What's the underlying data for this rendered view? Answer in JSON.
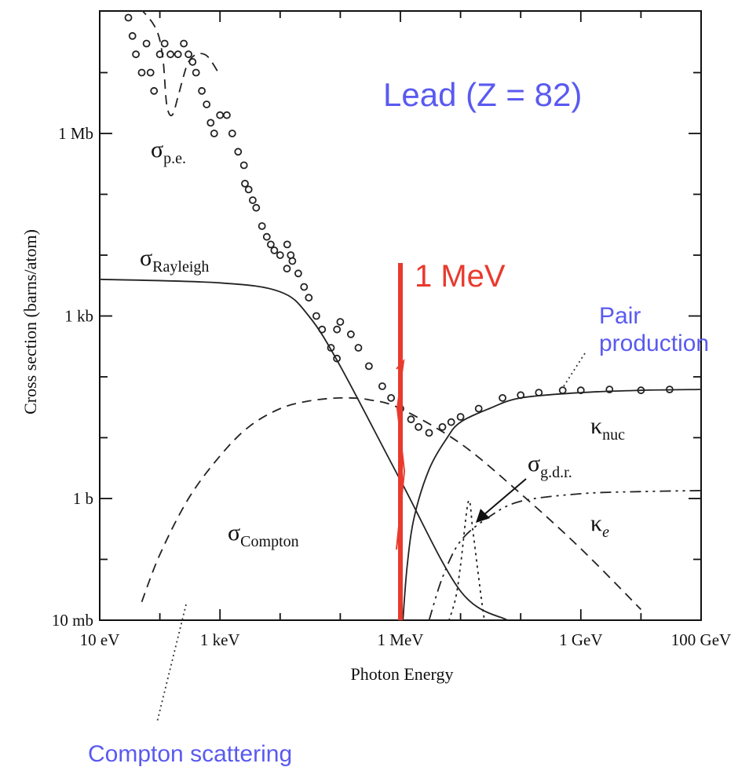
{
  "chart_data": {
    "type": "line",
    "xlabel": "Photon Energy",
    "ylabel": "Cross section  (barns/atom)",
    "x_scale": "log",
    "y_scale": "log",
    "xlim": [
      "10 eV",
      "100 GeV"
    ],
    "ylim": [
      "10 mb",
      "3000 Mb"
    ],
    "x_ticks": [
      "10 eV",
      "1 keV",
      "1 MeV",
      "1 GeV",
      "100 GeV"
    ],
    "y_ticks": [
      "10 mb",
      "1 b",
      "1 kb",
      "1 Mb"
    ],
    "annotations": {
      "element": "Lead (Z = 82)",
      "energy_marker": "1 MeV",
      "pair_production": [
        "Pair",
        "production"
      ],
      "compton_scattering": "Compton scattering"
    },
    "series": [
      {
        "name": "σ_p.e.",
        "label_main": "σ",
        "label_sub": "p.e.",
        "style": "dashed",
        "x_eV": [
          10,
          30,
          80,
          110,
          130,
          160,
          200,
          250,
          300,
          400,
          550,
          700,
          1000
        ],
        "y_barns": [
          1500000000,
          200000000,
          60000000,
          20000000,
          3000000,
          2000000,
          4000000,
          9000000,
          15000000,
          20000000,
          20000000,
          16000000,
          9000000
        ]
      },
      {
        "name": "σ_Rayleigh",
        "label_main": "σ",
        "label_sub": "Rayleigh",
        "style": "solid",
        "x_eV": [
          10,
          1000,
          10000,
          30000,
          100000,
          1000000,
          10000000,
          60000000
        ],
        "y_barns": [
          4000,
          3500,
          2500,
          1000,
          150,
          2,
          0.03,
          0.01
        ]
      },
      {
        "name": "σ_Compton",
        "label_main": "σ",
        "label_sub": "Compton",
        "style": "dashed",
        "x_eV": [
          50,
          100,
          300,
          1000,
          3000,
          10000,
          30000,
          100000,
          300000,
          1000000,
          10000000,
          100000000,
          1000000000,
          10000000000
        ],
        "y_barns": [
          0.02,
          0.12,
          1,
          5,
          15,
          30,
          40,
          45,
          42,
          30,
          8,
          1.2,
          0.15,
          0.015
        ]
      },
      {
        "name": "κ_nuc",
        "label_main": "κ",
        "label_sub": "nuc",
        "style": "solid",
        "x_eV": [
          1100000,
          1300000,
          1700000,
          3000000,
          6000000,
          10000000,
          30000000,
          100000000,
          1000000000,
          10000000000,
          100000000000
        ],
        "y_barns": [
          0.01,
          0.08,
          0.5,
          3,
          10,
          18,
          30,
          45,
          55,
          60,
          62
        ]
      },
      {
        "name": "κ_e",
        "label_main": "κ",
        "label_sub": "e",
        "style": "dash-dot",
        "x_eV": [
          3000000,
          5000000,
          10000000,
          30000000,
          100000000,
          1000000000,
          10000000000,
          100000000000
        ],
        "y_barns": [
          0.01,
          0.05,
          0.2,
          0.5,
          0.9,
          1.2,
          1.3,
          1.35
        ]
      },
      {
        "name": "σ_g.d.r.",
        "label_main": "σ",
        "label_sub": "g.d.r.",
        "style": "dotted",
        "x_eV": [
          5000000,
          8000000,
          10000000,
          13500000,
          16000000,
          20000000,
          25000000,
          30000000
        ],
        "y_barns": [
          0.005,
          0.02,
          0.08,
          0.9,
          0.3,
          0.05,
          0.01,
          0.005
        ]
      },
      {
        "name": "σ(experimental)",
        "style": "markers",
        "x_eV": [
          15,
          18,
          20,
          25,
          30,
          35,
          40,
          50,
          60,
          70,
          80,
          100,
          120,
          150,
          200,
          250,
          300,
          350,
          400,
          500,
          600,
          700,
          800,
          1000,
          1300,
          1600,
          2000,
          2500,
          2600,
          3000,
          3500,
          4000,
          5000,
          6000,
          7000,
          8000,
          10000,
          13000,
          13100,
          15000,
          16000,
          20000,
          25000,
          30000,
          40000,
          50000,
          70000,
          88000,
          88100,
          100000,
          150000,
          200000,
          300000,
          500000,
          700000,
          1000000,
          1500000,
          2000000,
          3000000,
          5000000,
          7000000,
          10000000,
          20000000,
          50000000,
          100000000,
          200000000,
          500000000,
          1000000000,
          3000000000,
          10000000000,
          30000000000
        ],
        "y_barns": [
          300000000,
          250000000,
          200000000,
          150000000,
          80000000,
          40000000,
          20000000,
          10000000,
          30000000,
          10000000,
          5000000,
          20000000,
          30000000,
          20000000,
          20000000,
          30000000,
          20000000,
          15000000,
          10000000,
          5000000,
          3000000,
          1500000,
          1000000,
          2000000,
          2000000,
          1000000,
          500000,
          300000,
          150000,
          120000,
          80000,
          60000,
          30000,
          20000,
          15000,
          12000,
          10000,
          6000,
          15000,
          10000,
          8000,
          5000,
          3000,
          2000,
          1000,
          600,
          300,
          200,
          600,
          800,
          500,
          300,
          150,
          70,
          45,
          30,
          20,
          15,
          12,
          15,
          18,
          22,
          30,
          45,
          50,
          55,
          60,
          60,
          62,
          60,
          62
        ]
      }
    ]
  }
}
